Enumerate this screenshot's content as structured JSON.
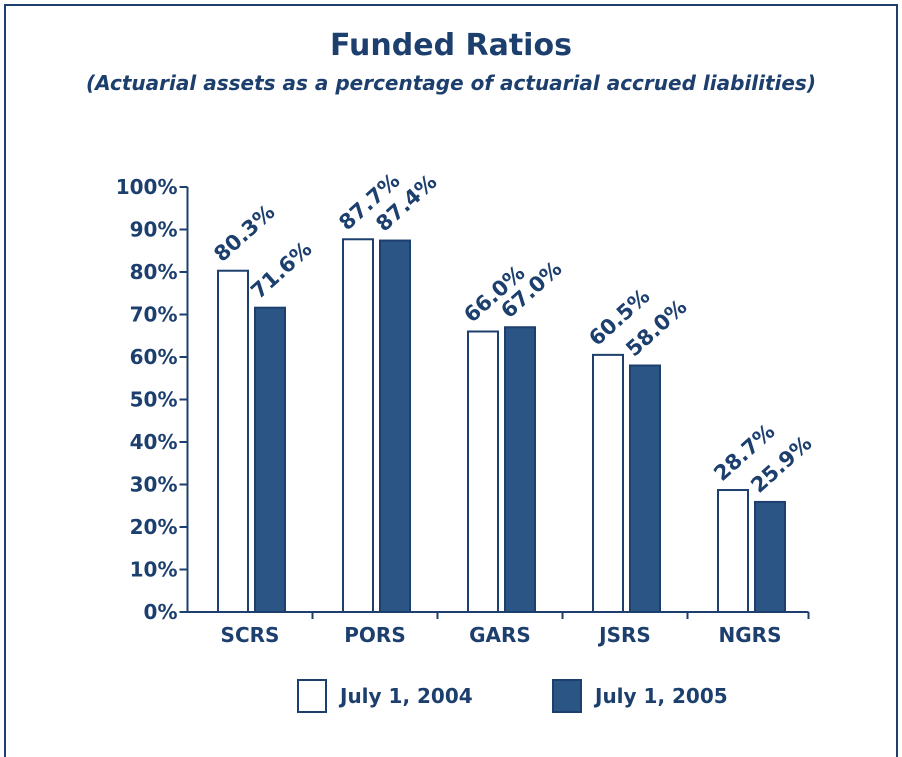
{
  "chart_data": {
    "type": "bar",
    "title": "Funded Ratios",
    "subtitle": "(Actuarial assets as a percentage of actuarial accrued liabilities)",
    "categories": [
      "SCRS",
      "PORS",
      "GARS",
      "JSRS",
      "NGRS"
    ],
    "series": [
      {
        "name": "July 1, 2004",
        "color": "#ffffff",
        "values": [
          80.3,
          87.7,
          66.0,
          60.5,
          28.7
        ],
        "value_labels": [
          "80.3%",
          "87.7%",
          "66.0%",
          "60.5%",
          "28.7%"
        ]
      },
      {
        "name": "July 1, 2005",
        "color": "#2a5585",
        "values": [
          71.6,
          87.4,
          67.0,
          58.0,
          25.9
        ],
        "value_labels": [
          "71.6%",
          "87.4%",
          "67.0%",
          "58.0%",
          "25.9%"
        ]
      }
    ],
    "ylim": [
      0,
      100
    ],
    "yticks": [
      {
        "value": 0,
        "label": "0%"
      },
      {
        "value": 10,
        "label": "10%"
      },
      {
        "value": 20,
        "label": "20%"
      },
      {
        "value": 30,
        "label": "30%"
      },
      {
        "value": 40,
        "label": "40%"
      },
      {
        "value": 50,
        "label": "50%"
      },
      {
        "value": 60,
        "label": "60%"
      },
      {
        "value": 70,
        "label": "70%"
      },
      {
        "value": 80,
        "label": "80%"
      },
      {
        "value": 90,
        "label": "90%"
      },
      {
        "value": 100,
        "label": "100%"
      }
    ],
    "legend": "bottom"
  }
}
